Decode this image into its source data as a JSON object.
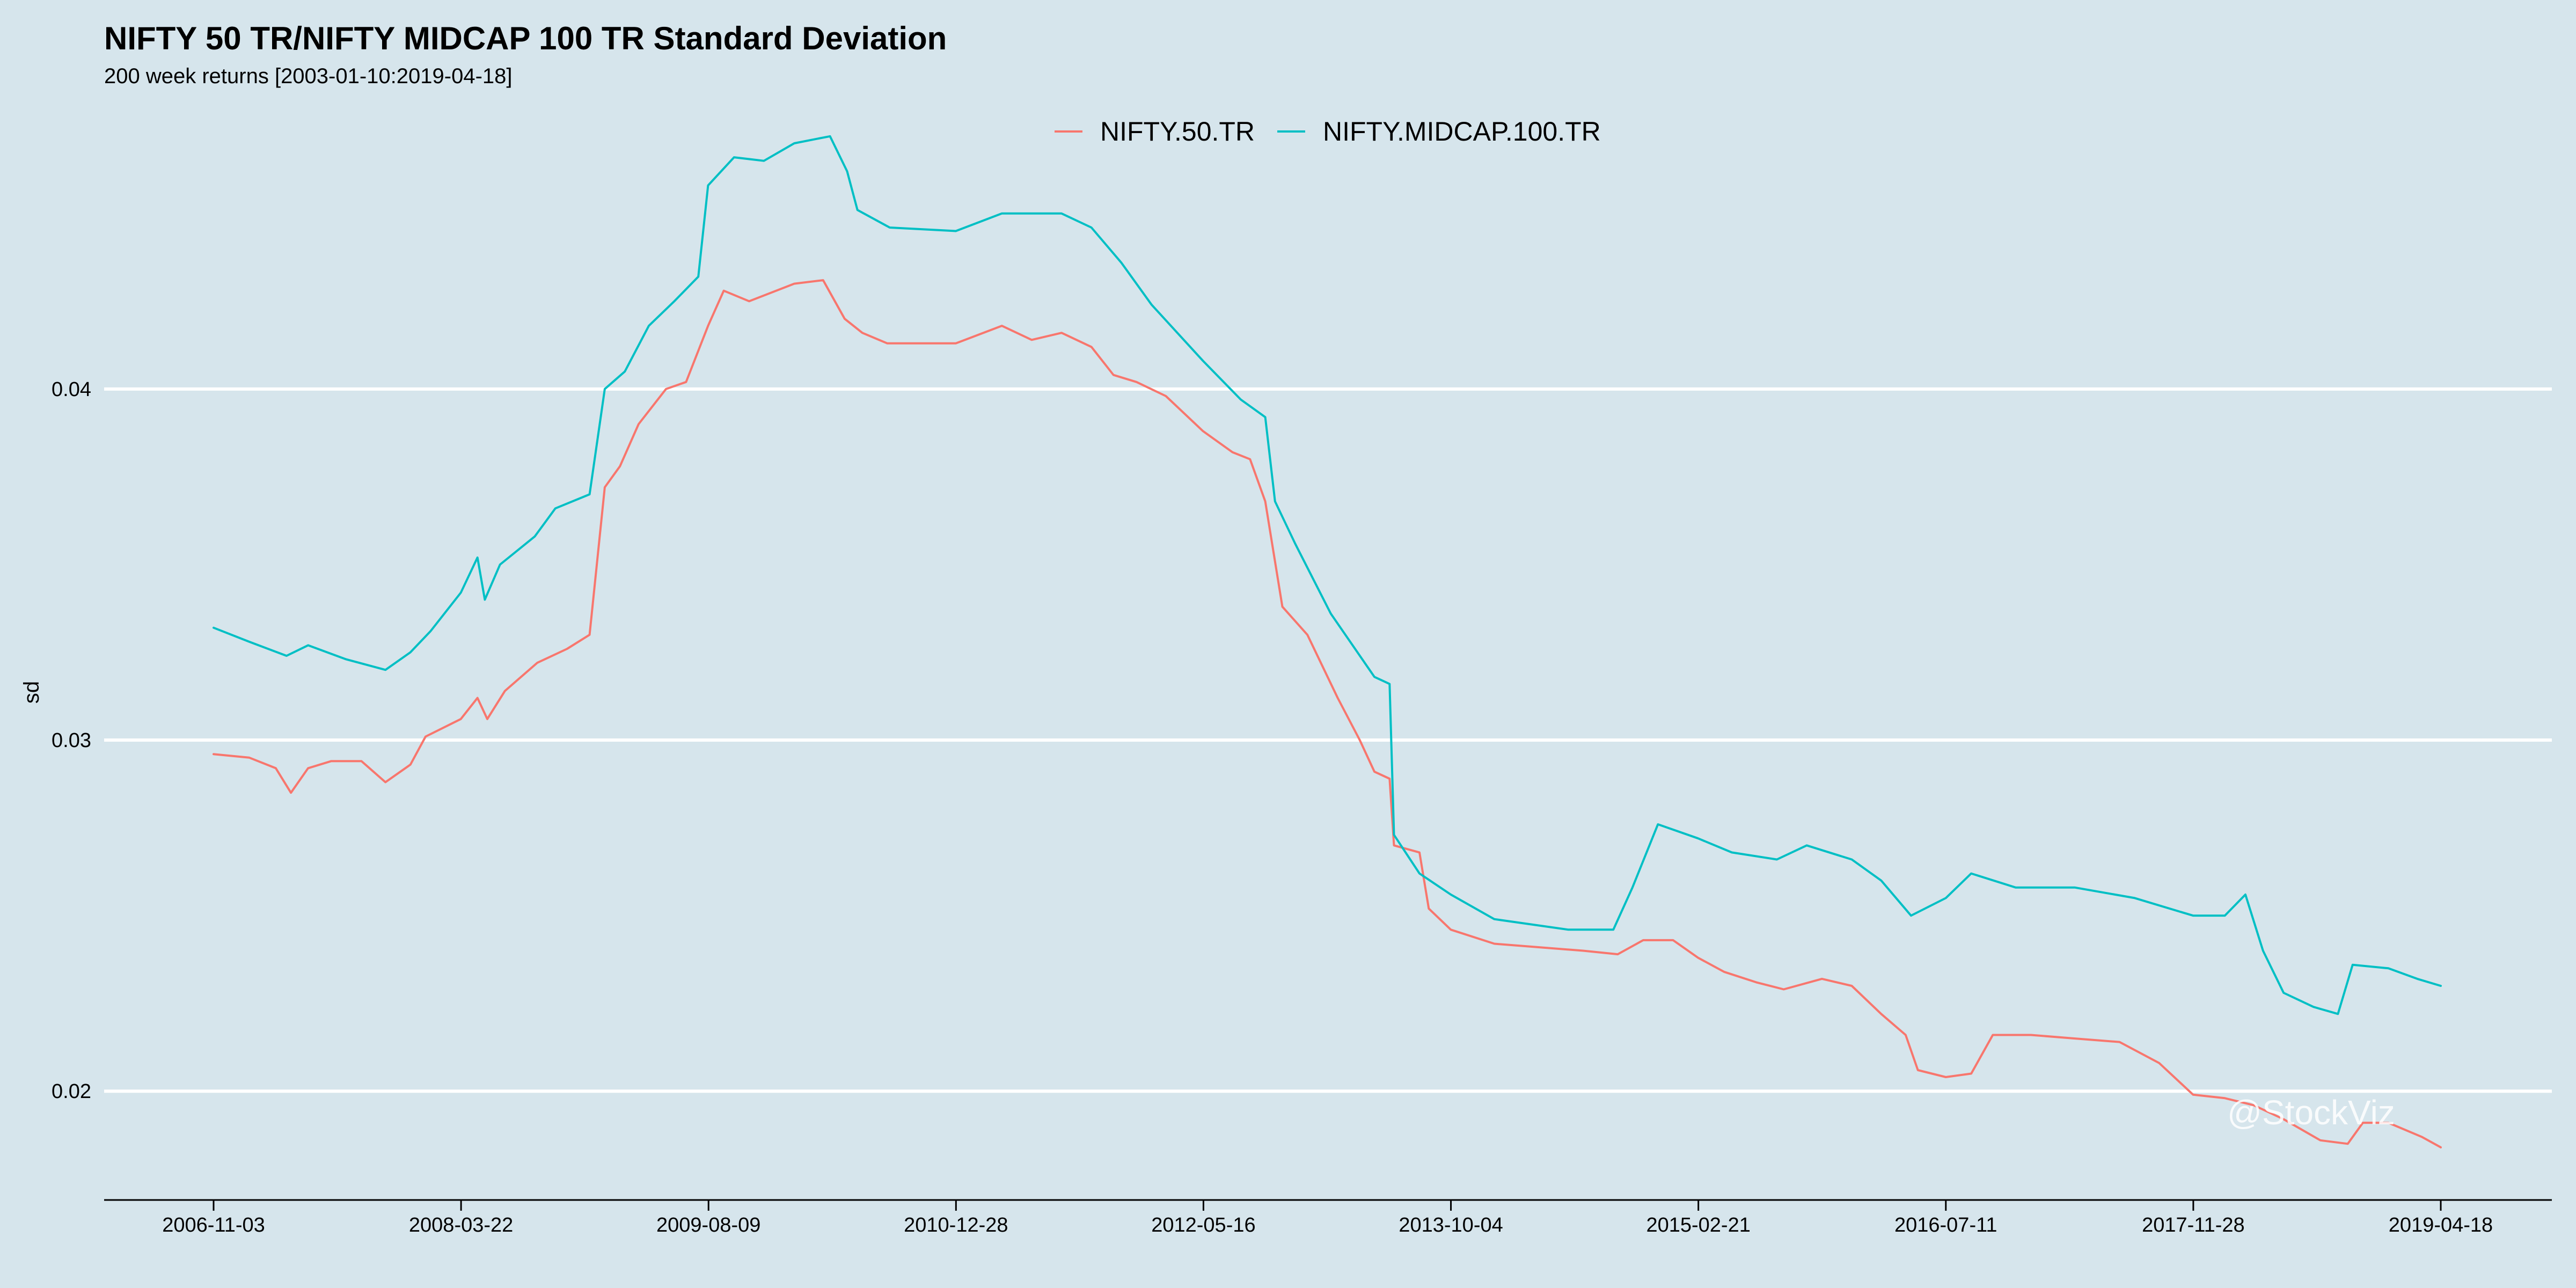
{
  "chart_data": {
    "type": "line",
    "title": "NIFTY 50 TR/NIFTY MIDCAP 100 TR Standard Deviation",
    "subtitle": "200 week returns [2003-01-10:2019-04-18]",
    "ylabel": "sd",
    "xlabel": "",
    "xlim": [
      "2006-11-03",
      "2019-04-18"
    ],
    "ylim": [
      0.0169,
      0.0481
    ],
    "y_ticks": [
      0.02,
      0.03,
      0.04
    ],
    "y_tick_labels": [
      "0.02",
      "0.03",
      "0.04"
    ],
    "x_tick_labels": [
      "2006-11-03",
      "2008-03-22",
      "2009-08-09",
      "2010-12-28",
      "2012-05-16",
      "2013-10-04",
      "2015-02-21",
      "2016-07-11",
      "2017-11-28",
      "2019-04-18"
    ],
    "grid": "horizontal",
    "legend_position": "top",
    "watermark": "@StockViz",
    "colors": {
      "NIFTY.50.TR": "#f8766d",
      "NIFTY.MIDCAP.100.TR": "#00bfc4"
    },
    "series": [
      {
        "name": "NIFTY.50.TR",
        "color": "#f8766d",
        "points": [
          [
            "2006-11-03",
            0.0296
          ],
          [
            "2007-01-15",
            0.0295
          ],
          [
            "2007-03-10",
            0.0292
          ],
          [
            "2007-04-10",
            0.0285
          ],
          [
            "2007-05-15",
            0.0292
          ],
          [
            "2007-07-01",
            0.0294
          ],
          [
            "2007-09-01",
            0.0294
          ],
          [
            "2007-10-20",
            0.0288
          ],
          [
            "2007-12-10",
            0.0293
          ],
          [
            "2008-01-10",
            0.0301
          ],
          [
            "2008-03-22",
            0.0306
          ],
          [
            "2008-04-25",
            0.0312
          ],
          [
            "2008-05-15",
            0.0306
          ],
          [
            "2008-06-20",
            0.0314
          ],
          [
            "2008-08-25",
            0.0322
          ],
          [
            "2008-10-25",
            0.0326
          ],
          [
            "2008-12-10",
            0.033
          ],
          [
            "2009-01-10",
            0.0372
          ],
          [
            "2009-02-10",
            0.0378
          ],
          [
            "2009-03-20",
            0.039
          ],
          [
            "2009-05-15",
            0.04
          ],
          [
            "2009-06-25",
            0.0402
          ],
          [
            "2009-08-09",
            0.0418
          ],
          [
            "2009-09-10",
            0.0428
          ],
          [
            "2009-11-01",
            0.0425
          ],
          [
            "2010-02-01",
            0.043
          ],
          [
            "2010-04-01",
            0.0431
          ],
          [
            "2010-05-15",
            0.042
          ],
          [
            "2010-06-20",
            0.0416
          ],
          [
            "2010-08-10",
            0.0413
          ],
          [
            "2010-12-28",
            0.0413
          ],
          [
            "2011-04-01",
            0.0418
          ],
          [
            "2011-06-01",
            0.0414
          ],
          [
            "2011-08-01",
            0.0416
          ],
          [
            "2011-10-01",
            0.0412
          ],
          [
            "2011-11-15",
            0.0404
          ],
          [
            "2012-01-01",
            0.0402
          ],
          [
            "2012-03-01",
            0.0398
          ],
          [
            "2012-05-16",
            0.0388
          ],
          [
            "2012-07-15",
            0.0382
          ],
          [
            "2012-08-20",
            0.038
          ],
          [
            "2012-09-20",
            0.0368
          ],
          [
            "2012-10-25",
            0.0338
          ],
          [
            "2012-12-15",
            0.033
          ],
          [
            "2013-02-15",
            0.0312
          ],
          [
            "2013-04-01",
            0.03
          ],
          [
            "2013-05-01",
            0.0291
          ],
          [
            "2013-06-01",
            0.0289
          ],
          [
            "2013-06-10",
            0.027
          ],
          [
            "2013-08-01",
            0.0268
          ],
          [
            "2013-08-20",
            0.0252
          ],
          [
            "2013-10-04",
            0.0246
          ],
          [
            "2014-01-01",
            0.0242
          ],
          [
            "2014-04-01",
            0.0241
          ],
          [
            "2014-07-01",
            0.024
          ],
          [
            "2014-09-10",
            0.0239
          ],
          [
            "2014-11-01",
            0.0243
          ],
          [
            "2015-01-01",
            0.0243
          ],
          [
            "2015-02-21",
            0.0238
          ],
          [
            "2015-04-15",
            0.0234
          ],
          [
            "2015-06-20",
            0.0231
          ],
          [
            "2015-08-15",
            0.0229
          ],
          [
            "2015-11-01",
            0.0232
          ],
          [
            "2016-01-01",
            0.023
          ],
          [
            "2016-03-01",
            0.0222
          ],
          [
            "2016-04-20",
            0.0216
          ],
          [
            "2016-05-15",
            0.0206
          ],
          [
            "2016-07-11",
            0.0204
          ],
          [
            "2016-09-01",
            0.0205
          ],
          [
            "2016-10-15",
            0.0216
          ],
          [
            "2017-01-01",
            0.0216
          ],
          [
            "2017-04-01",
            0.0215
          ],
          [
            "2017-07-01",
            0.0214
          ],
          [
            "2017-09-20",
            0.0208
          ],
          [
            "2017-11-28",
            0.0199
          ],
          [
            "2018-02-01",
            0.0198
          ],
          [
            "2018-04-01",
            0.0196
          ],
          [
            "2018-06-01",
            0.0192
          ],
          [
            "2018-08-15",
            0.0186
          ],
          [
            "2018-10-10",
            0.0185
          ],
          [
            "2018-11-10",
            0.0191
          ],
          [
            "2019-01-01",
            0.0191
          ],
          [
            "2019-03-10",
            0.0187
          ],
          [
            "2019-04-18",
            0.0184
          ]
        ]
      },
      {
        "name": "NIFTY.MIDCAP.100.TR",
        "color": "#00bfc4",
        "points": [
          [
            "2006-11-03",
            0.0332
          ],
          [
            "2007-01-15",
            0.0328
          ],
          [
            "2007-04-01",
            0.0324
          ],
          [
            "2007-05-15",
            0.0327
          ],
          [
            "2007-08-01",
            0.0323
          ],
          [
            "2007-10-20",
            0.032
          ],
          [
            "2007-12-10",
            0.0325
          ],
          [
            "2008-01-20",
            0.0331
          ],
          [
            "2008-03-22",
            0.0342
          ],
          [
            "2008-04-25",
            0.0352
          ],
          [
            "2008-05-10",
            0.034
          ],
          [
            "2008-06-10",
            0.035
          ],
          [
            "2008-08-20",
            0.0358
          ],
          [
            "2008-10-01",
            0.0366
          ],
          [
            "2008-12-10",
            0.037
          ],
          [
            "2009-01-10",
            0.04
          ],
          [
            "2009-02-20",
            0.0405
          ],
          [
            "2009-04-10",
            0.0418
          ],
          [
            "2009-06-01",
            0.0425
          ],
          [
            "2009-07-20",
            0.0432
          ],
          [
            "2009-08-09",
            0.0458
          ],
          [
            "2009-10-01",
            0.0466
          ],
          [
            "2009-12-01",
            0.0465
          ],
          [
            "2010-02-01",
            0.047
          ],
          [
            "2010-04-15",
            0.0472
          ],
          [
            "2010-05-20",
            0.0462
          ],
          [
            "2010-06-10",
            0.0451
          ],
          [
            "2010-08-15",
            0.0446
          ],
          [
            "2010-12-28",
            0.0445
          ],
          [
            "2011-04-01",
            0.045
          ],
          [
            "2011-08-01",
            0.045
          ],
          [
            "2011-10-01",
            0.0446
          ],
          [
            "2011-12-01",
            0.0436
          ],
          [
            "2012-02-01",
            0.0424
          ],
          [
            "2012-05-16",
            0.0408
          ],
          [
            "2012-08-01",
            0.0397
          ],
          [
            "2012-09-20",
            0.0392
          ],
          [
            "2012-10-10",
            0.0368
          ],
          [
            "2012-11-20",
            0.0356
          ],
          [
            "2013-02-01",
            0.0336
          ],
          [
            "2013-05-01",
            0.0318
          ],
          [
            "2013-06-01",
            0.0316
          ],
          [
            "2013-06-10",
            0.0273
          ],
          [
            "2013-08-01",
            0.0262
          ],
          [
            "2013-10-04",
            0.0256
          ],
          [
            "2014-01-01",
            0.0249
          ],
          [
            "2014-06-01",
            0.0246
          ],
          [
            "2014-09-01",
            0.0246
          ],
          [
            "2014-10-10",
            0.0258
          ],
          [
            "2014-12-01",
            0.0276
          ],
          [
            "2015-02-21",
            0.0272
          ],
          [
            "2015-05-01",
            0.0268
          ],
          [
            "2015-08-01",
            0.0266
          ],
          [
            "2015-10-01",
            0.027
          ],
          [
            "2016-01-01",
            0.0266
          ],
          [
            "2016-03-01",
            0.026
          ],
          [
            "2016-05-01",
            0.025
          ],
          [
            "2016-07-11",
            0.0255
          ],
          [
            "2016-09-01",
            0.0262
          ],
          [
            "2016-12-01",
            0.0258
          ],
          [
            "2017-04-01",
            0.0258
          ],
          [
            "2017-08-01",
            0.0255
          ],
          [
            "2017-11-28",
            0.025
          ],
          [
            "2018-02-01",
            0.025
          ],
          [
            "2018-03-15",
            0.0256
          ],
          [
            "2018-04-20",
            0.024
          ],
          [
            "2018-06-01",
            0.0228
          ],
          [
            "2018-08-01",
            0.0224
          ],
          [
            "2018-09-20",
            0.0222
          ],
          [
            "2018-10-20",
            0.0236
          ],
          [
            "2019-01-01",
            0.0235
          ],
          [
            "2019-03-01",
            0.0232
          ],
          [
            "2019-04-18",
            0.023
          ]
        ]
      }
    ]
  }
}
